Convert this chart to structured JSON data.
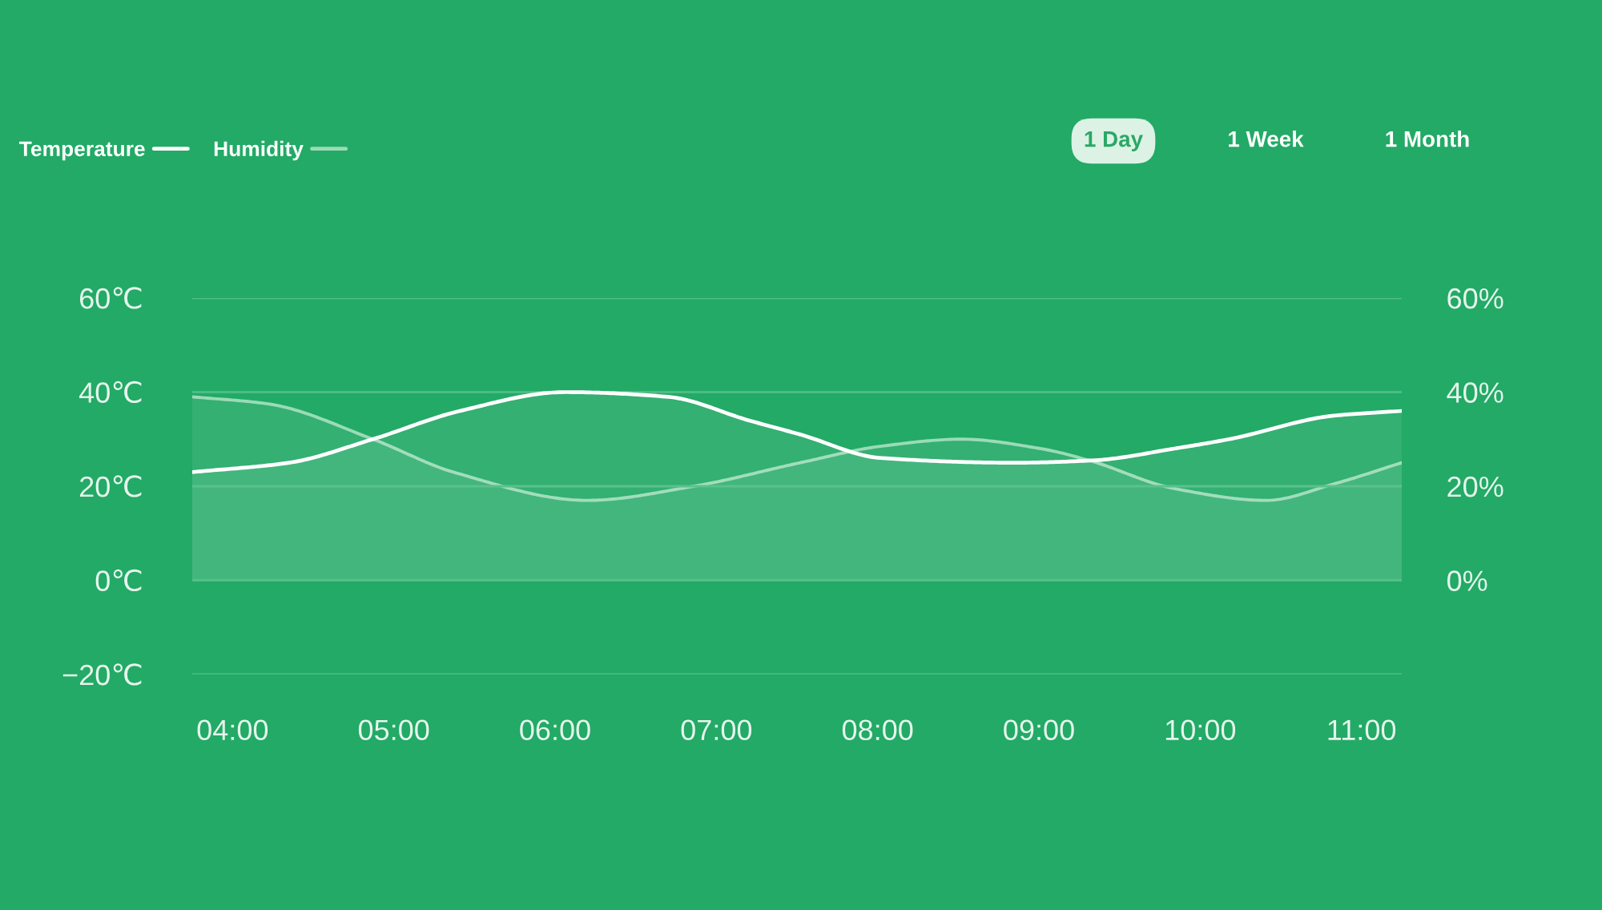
{
  "chart_data": {
    "type": "area",
    "legend": "top left",
    "grid": "y",
    "annotations": [
      "1 Day",
      "1 Week",
      "1 Month"
    ],
    "xlim": [
      3.75,
      11.25
    ],
    "xticks": [
      {
        "value": 4,
        "label": "04:00"
      },
      {
        "value": 5,
        "label": "05:00"
      },
      {
        "value": 6,
        "label": "06:00"
      },
      {
        "value": 7,
        "label": "07:00"
      },
      {
        "value": 8,
        "label": "08:00"
      },
      {
        "value": 9,
        "label": "09:00"
      },
      {
        "value": 10,
        "label": "10:00"
      },
      {
        "value": 11,
        "label": "11:00"
      }
    ],
    "ylim": [
      -20,
      60
    ],
    "yticks": [
      {
        "value": -20,
        "label": "−20℃"
      },
      {
        "value": 0,
        "label": "0℃"
      },
      {
        "value": 20,
        "label": "20℃"
      },
      {
        "value": 40,
        "label": "40℃"
      },
      {
        "value": 60,
        "label": "60℃"
      }
    ],
    "y2lim": [
      -20,
      60
    ],
    "y2ticks": [
      {
        "value": 0,
        "label": "0%"
      },
      {
        "value": 20,
        "label": "20%"
      },
      {
        "value": 40,
        "label": "40%"
      },
      {
        "value": 60,
        "label": "60%"
      }
    ],
    "series": [
      {
        "name": "Temperature",
        "color": "#ffffff",
        "x": [
          3.75,
          4.35,
          4.87,
          5.41,
          6.06,
          6.7,
          7.2,
          7.52,
          8.02,
          8.85,
          9.34,
          9.84,
          10.18,
          10.83,
          11.25
        ],
        "values": [
          23,
          25,
          30,
          36,
          40,
          39,
          34,
          31,
          26,
          25,
          25.5,
          28,
          30,
          35,
          36
        ]
      },
      {
        "name": "Humidity",
        "color": "#9bdbb7",
        "axis": "y2",
        "x": [
          3.75,
          4.22,
          4.87,
          5.37,
          6.2,
          6.86,
          7.52,
          8.02,
          8.52,
          9.01,
          9.31,
          9.84,
          10.41,
          10.83,
          11.25
        ],
        "values": [
          39,
          37.5,
          30,
          23,
          17,
          20,
          25,
          28.5,
          30,
          28,
          25.5,
          19.5,
          17,
          20.5,
          25
        ]
      }
    ]
  }
}
